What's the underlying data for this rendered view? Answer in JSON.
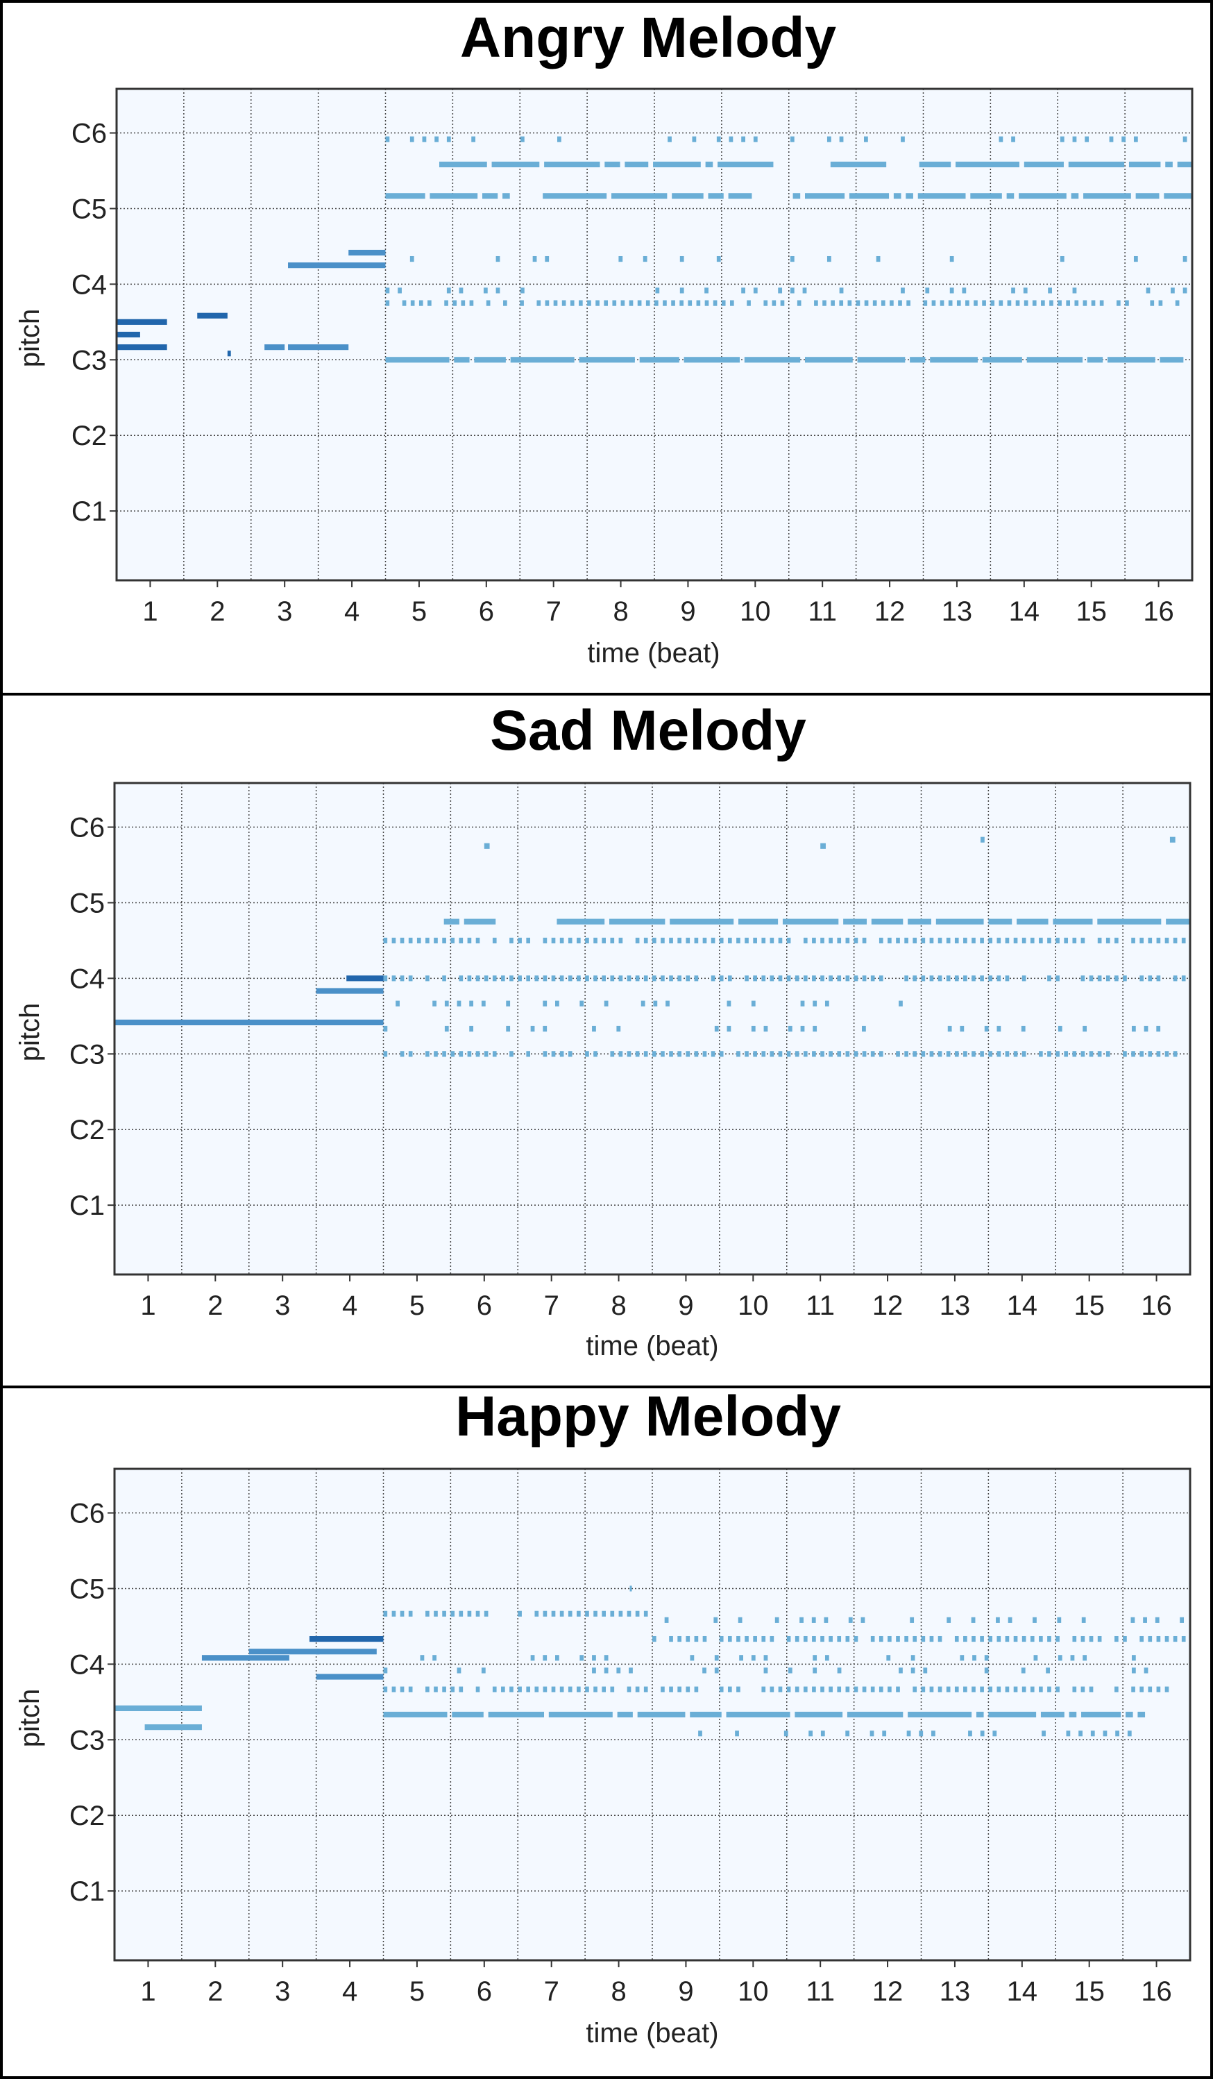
{
  "chart_data": [
    {
      "type": "piano-roll",
      "title": "Angry Melody",
      "xlabel": "time (beat)",
      "ylabel": "pitch",
      "x_ticks": [
        "1",
        "2",
        "3",
        "4",
        "5",
        "6",
        "7",
        "8",
        "9",
        "10",
        "11",
        "12",
        "13",
        "14",
        "15",
        "16"
      ],
      "xlim": [
        0.5,
        16.5
      ],
      "y_ticks": [
        "C1",
        "C2",
        "C3",
        "C4",
        "C5",
        "C6"
      ],
      "y_tick_midi": [
        24,
        36,
        48,
        60,
        72,
        84
      ],
      "ylim": [
        13,
        91
      ],
      "grid": true,
      "colors": {
        "background": "#f4f9ff",
        "dark_note": "#2166ac",
        "light_note": "#6aaed6"
      },
      "notes": [
        {
          "pitch": 54,
          "start": 0.5,
          "end": 1.25,
          "shade": "dark"
        },
        {
          "pitch": 52,
          "start": 0.5,
          "end": 0.85,
          "shade": "dark"
        },
        {
          "pitch": 50,
          "start": 0.5,
          "end": 1.25,
          "shade": "dark"
        },
        {
          "pitch": 55,
          "start": 1.7,
          "end": 2.15,
          "shade": "dark"
        },
        {
          "pitch": 49,
          "start": 2.15,
          "end": 2.2,
          "shade": "dark"
        },
        {
          "pitch": 50,
          "start": 2.7,
          "end": 3.0,
          "shade": "mid"
        },
        {
          "pitch": 50,
          "start": 3.05,
          "end": 3.95,
          "shade": "mid"
        },
        {
          "pitch": 63,
          "start": 3.05,
          "end": 4.5,
          "shade": "mid"
        },
        {
          "pitch": 65,
          "start": 3.95,
          "end": 4.5,
          "shade": "mid"
        },
        {
          "pitch": 79,
          "start": 5.3,
          "end": 16.5,
          "shade": "light",
          "pattern": "dashed"
        },
        {
          "pitch": 74,
          "start": 4.5,
          "end": 16.5,
          "shade": "light",
          "pattern": "dashed"
        },
        {
          "pitch": 57,
          "start": 4.5,
          "end": 16.5,
          "shade": "light",
          "pattern": "dotted"
        },
        {
          "pitch": 48,
          "start": 4.5,
          "end": 16.5,
          "shade": "light",
          "pattern": "dashed"
        },
        {
          "pitch": 59,
          "start": 4.5,
          "end": 16.5,
          "shade": "light",
          "pattern": "sparse"
        },
        {
          "pitch": 64,
          "start": 4.5,
          "end": 16.5,
          "shade": "light",
          "pattern": "sparse"
        },
        {
          "pitch": 83,
          "start": 4.5,
          "end": 16.5,
          "shade": "light",
          "pattern": "sparse"
        }
      ]
    },
    {
      "type": "piano-roll",
      "title": "Sad Melody",
      "xlabel": "time (beat)",
      "ylabel": "pitch",
      "x_ticks": [
        "1",
        "2",
        "3",
        "4",
        "5",
        "6",
        "7",
        "8",
        "9",
        "10",
        "11",
        "12",
        "13",
        "14",
        "15",
        "16"
      ],
      "xlim": [
        0.5,
        16.5
      ],
      "y_ticks": [
        "C1",
        "C2",
        "C3",
        "C4",
        "C5",
        "C6"
      ],
      "y_tick_midi": [
        24,
        36,
        48,
        60,
        72,
        84
      ],
      "ylim": [
        13,
        91
      ],
      "grid": true,
      "colors": {
        "background": "#f4f9ff",
        "dark_note": "#2166ac",
        "light_note": "#6aaed6"
      },
      "notes": [
        {
          "pitch": 53,
          "start": 0.5,
          "end": 4.5,
          "shade": "mid"
        },
        {
          "pitch": 60,
          "start": 3.95,
          "end": 4.5,
          "shade": "dark"
        },
        {
          "pitch": 58,
          "start": 3.5,
          "end": 4.5,
          "shade": "mid"
        },
        {
          "pitch": 69,
          "start": 4.5,
          "end": 16.5,
          "shade": "light",
          "pattern": "dashed"
        },
        {
          "pitch": 66,
          "start": 4.5,
          "end": 16.5,
          "shade": "light",
          "pattern": "dotted"
        },
        {
          "pitch": 60,
          "start": 4.5,
          "end": 16.5,
          "shade": "light",
          "pattern": "dotted"
        },
        {
          "pitch": 56,
          "start": 4.5,
          "end": 12.3,
          "shade": "light",
          "pattern": "sparse"
        },
        {
          "pitch": 52,
          "start": 4.5,
          "end": 16.5,
          "shade": "light",
          "pattern": "sparse"
        },
        {
          "pitch": 48,
          "start": 4.5,
          "end": 16.5,
          "shade": "light",
          "pattern": "dotted"
        },
        {
          "pitch": 81,
          "start": 6.0,
          "end": 6.08,
          "shade": "light"
        },
        {
          "pitch": 81,
          "start": 11.0,
          "end": 11.08,
          "shade": "light"
        },
        {
          "pitch": 82,
          "start": 13.2,
          "end": 13.5,
          "shade": "light",
          "pattern": "sparse"
        },
        {
          "pitch": 82,
          "start": 16.2,
          "end": 16.28,
          "shade": "light"
        }
      ]
    },
    {
      "type": "piano-roll",
      "title": "Happy Melody",
      "xlabel": "time (beat)",
      "ylabel": "pitch",
      "x_ticks": [
        "1",
        "2",
        "3",
        "4",
        "5",
        "6",
        "7",
        "8",
        "9",
        "10",
        "11",
        "12",
        "13",
        "14",
        "15",
        "16"
      ],
      "xlim": [
        0.5,
        16.5
      ],
      "y_ticks": [
        "C1",
        "C2",
        "C3",
        "C4",
        "C5",
        "C6"
      ],
      "y_tick_midi": [
        24,
        36,
        48,
        60,
        72,
        84
      ],
      "ylim": [
        13,
        91
      ],
      "grid": true,
      "colors": {
        "background": "#f4f9ff",
        "dark_note": "#2166ac",
        "light_note": "#6aaed6"
      },
      "notes": [
        {
          "pitch": 53,
          "start": 0.5,
          "end": 1.8,
          "shade": "light"
        },
        {
          "pitch": 50,
          "start": 0.95,
          "end": 1.8,
          "shade": "light"
        },
        {
          "pitch": 61,
          "start": 1.8,
          "end": 3.1,
          "shade": "mid"
        },
        {
          "pitch": 62,
          "start": 2.5,
          "end": 3.55,
          "shade": "mid"
        },
        {
          "pitch": 64,
          "start": 3.4,
          "end": 4.5,
          "shade": "dark"
        },
        {
          "pitch": 62,
          "start": 3.5,
          "end": 4.4,
          "shade": "mid"
        },
        {
          "pitch": 58,
          "start": 3.5,
          "end": 4.5,
          "shade": "mid"
        },
        {
          "pitch": 68,
          "start": 4.5,
          "end": 8.45,
          "shade": "light",
          "pattern": "dotted"
        },
        {
          "pitch": 52,
          "start": 4.5,
          "end": 16.5,
          "shade": "light",
          "pattern": "dashed"
        },
        {
          "pitch": 56,
          "start": 4.5,
          "end": 16.5,
          "shade": "light",
          "pattern": "dotted"
        },
        {
          "pitch": 64,
          "start": 8.5,
          "end": 16.5,
          "shade": "light",
          "pattern": "dotted"
        },
        {
          "pitch": 61,
          "start": 4.5,
          "end": 16.5,
          "shade": "light",
          "pattern": "sparse"
        },
        {
          "pitch": 67,
          "start": 8.5,
          "end": 16.5,
          "shade": "light",
          "pattern": "sparse"
        },
        {
          "pitch": 59,
          "start": 4.5,
          "end": 16.5,
          "shade": "light",
          "pattern": "sparse"
        },
        {
          "pitch": 72,
          "start": 7.8,
          "end": 8.2,
          "shade": "light",
          "pattern": "sparse"
        },
        {
          "pitch": 49,
          "start": 9.0,
          "end": 16.5,
          "shade": "light",
          "pattern": "sparse"
        }
      ]
    }
  ]
}
